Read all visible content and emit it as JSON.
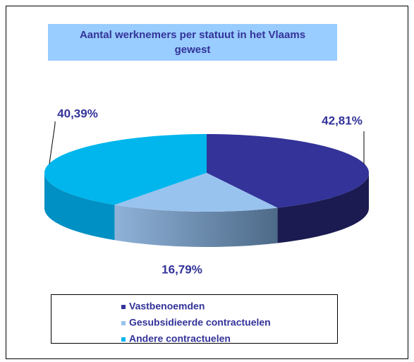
{
  "chart_data": {
    "type": "pie",
    "title": "Aantal werknemers per statuut in het Vlaams gewest",
    "categories": [
      "Vastbenoemden",
      "Gesubsidieerde contractuelen",
      "Andere contractuelen"
    ],
    "values": [
      42.81,
      16.79,
      40.39
    ],
    "value_labels": [
      "42,81%",
      "16,79%",
      "40,39%"
    ],
    "colors": [
      "#333399",
      "#99c3ef",
      "#00b6ec"
    ],
    "legend": "bottom"
  }
}
